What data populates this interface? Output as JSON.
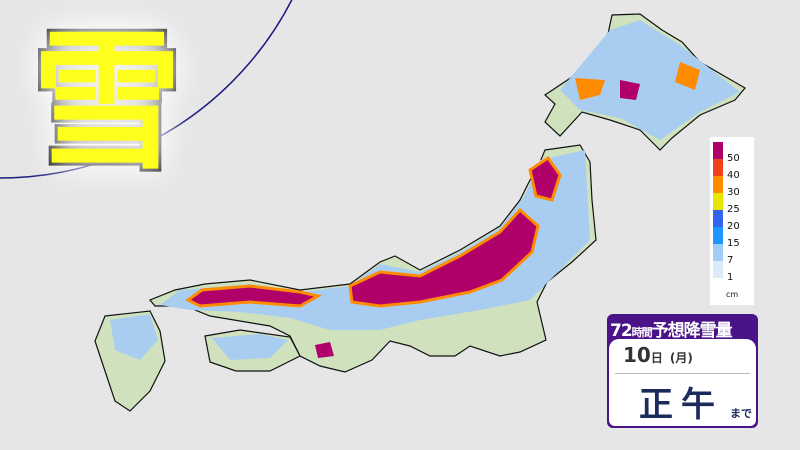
{
  "title": {
    "character": "雪"
  },
  "map": {
    "land_color": "#cfe2bd",
    "light_snow_color": "#a9cdf0",
    "heavy_snow_color": "#b0006a",
    "regions": [
      "hokkaido",
      "honshu",
      "shikoku",
      "kyushu"
    ]
  },
  "legend": {
    "unit": "cm",
    "levels": [
      {
        "label": "50",
        "color": "#b0006a"
      },
      {
        "label": "40",
        "color": "#f0401e"
      },
      {
        "label": "30",
        "color": "#ff8c00"
      },
      {
        "label": "25",
        "color": "#e6e600"
      },
      {
        "label": "20",
        "color": "#3264f0"
      },
      {
        "label": "15",
        "color": "#1e96ff"
      },
      {
        "label": "7",
        "color": "#a0ccf5"
      },
      {
        "label": "1",
        "color": "#dcebfa"
      }
    ]
  },
  "info": {
    "hours": "72",
    "hours_unit": "時間",
    "label": "予想降雪量",
    "day": "10",
    "day_unit": "日",
    "weekday": "(月)",
    "time": "正午",
    "until": "まで"
  }
}
